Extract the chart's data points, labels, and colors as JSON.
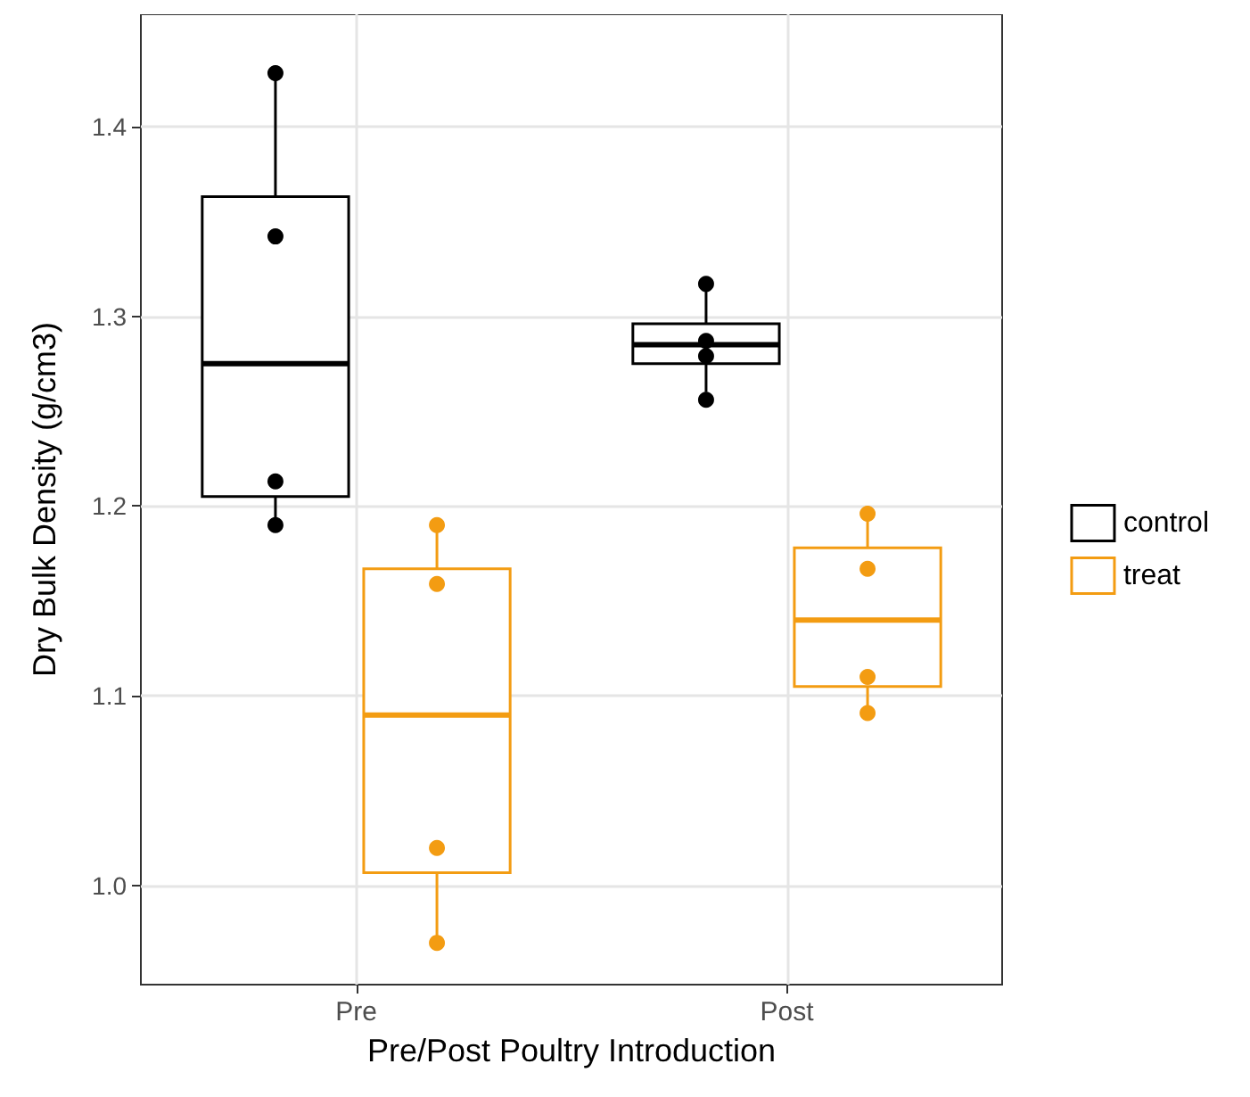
{
  "chart_data": {
    "type": "box",
    "xlabel": "Pre/Post Poultry Introduction",
    "ylabel": "Dry Bulk Density (g/cm3)",
    "categories": [
      "Pre",
      "Post"
    ],
    "ylim": [
      0.948,
      1.459
    ],
    "yticks": [
      {
        "value": 1.0,
        "label": "1.0"
      },
      {
        "value": 1.1,
        "label": "1.1"
      },
      {
        "value": 1.2,
        "label": "1.2"
      },
      {
        "value": 1.3,
        "label": "1.3"
      },
      {
        "value": 1.4,
        "label": "1.4"
      }
    ],
    "grid": true,
    "legend": "right",
    "series": [
      {
        "name": "control",
        "color": "#000000",
        "boxes": [
          {
            "low": 1.19,
            "q1": 1.205,
            "median": 1.275,
            "q3": 1.363,
            "high": 1.43
          },
          {
            "low": 1.26,
            "q1": 1.275,
            "median": 1.285,
            "q3": 1.296,
            "high": 1.32
          }
        ]
      },
      {
        "name": "treat",
        "color": "#f39c12",
        "boxes": [
          {
            "low": 0.97,
            "q1": 1.007,
            "median": 1.09,
            "q3": 1.167,
            "high": 1.19
          },
          {
            "low": 1.09,
            "q1": 1.105,
            "median": 1.14,
            "q3": 1.178,
            "high": 1.2
          }
        ]
      },
      {
        "type": "scatter",
        "color": "#000000",
        "x": [
          "Pre",
          "Pre",
          "Pre",
          "Pre",
          "Post",
          "Post",
          "Post",
          "Post"
        ],
        "values": [
          1.428,
          1.342,
          1.213,
          1.19,
          1.256,
          1.287,
          1.279,
          1.317
        ]
      },
      {
        "type": "scatter",
        "color": "#f39c12",
        "x": [
          "Pre",
          "Pre",
          "Pre",
          "Pre",
          "Post",
          "Post",
          "Post",
          "Post"
        ],
        "values": [
          1.19,
          1.159,
          1.02,
          0.97,
          1.091,
          1.196,
          1.11,
          1.167
        ]
      }
    ]
  }
}
